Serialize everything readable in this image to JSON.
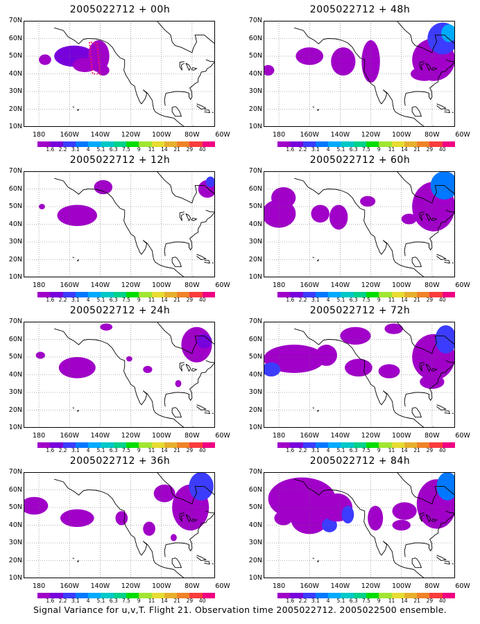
{
  "panels": [
    {
      "title": "2005022712 + 00h"
    },
    {
      "title": "2005022712 + 48h"
    },
    {
      "title": "2005022712 + 12h"
    },
    {
      "title": "2005022712 + 60h"
    },
    {
      "title": "2005022712 + 24h"
    },
    {
      "title": "2005022712 + 72h"
    },
    {
      "title": "2005022712 + 36h"
    },
    {
      "title": "2005022712 + 84h"
    }
  ],
  "lat_labels": [
    "70N",
    "60N",
    "50N",
    "40N",
    "30N",
    "20N",
    "10N"
  ],
  "lon_labels": [
    "180",
    "160W",
    "140W",
    "120W",
    "100W",
    "80W",
    "60W"
  ],
  "colorbar": {
    "labels": [
      "1.6",
      "2.2",
      "3.1",
      "4",
      "5.1",
      "6.3",
      "7.5",
      "9",
      "11",
      "14",
      "21",
      "29",
      "40"
    ],
    "colors": [
      "#a000c8",
      "#7800dc",
      "#3c3cff",
      "#0078ff",
      "#00aaff",
      "#00c8c8",
      "#00d28c",
      "#00dc00",
      "#a0e632",
      "#e6dc32",
      "#e6af2d",
      "#f08228",
      "#fa3c3c",
      "#f00082"
    ]
  },
  "caption": "Signal Variance for u,v,T. Flight 21. Observation time 2005022712. 2005022500 ensemble."
}
